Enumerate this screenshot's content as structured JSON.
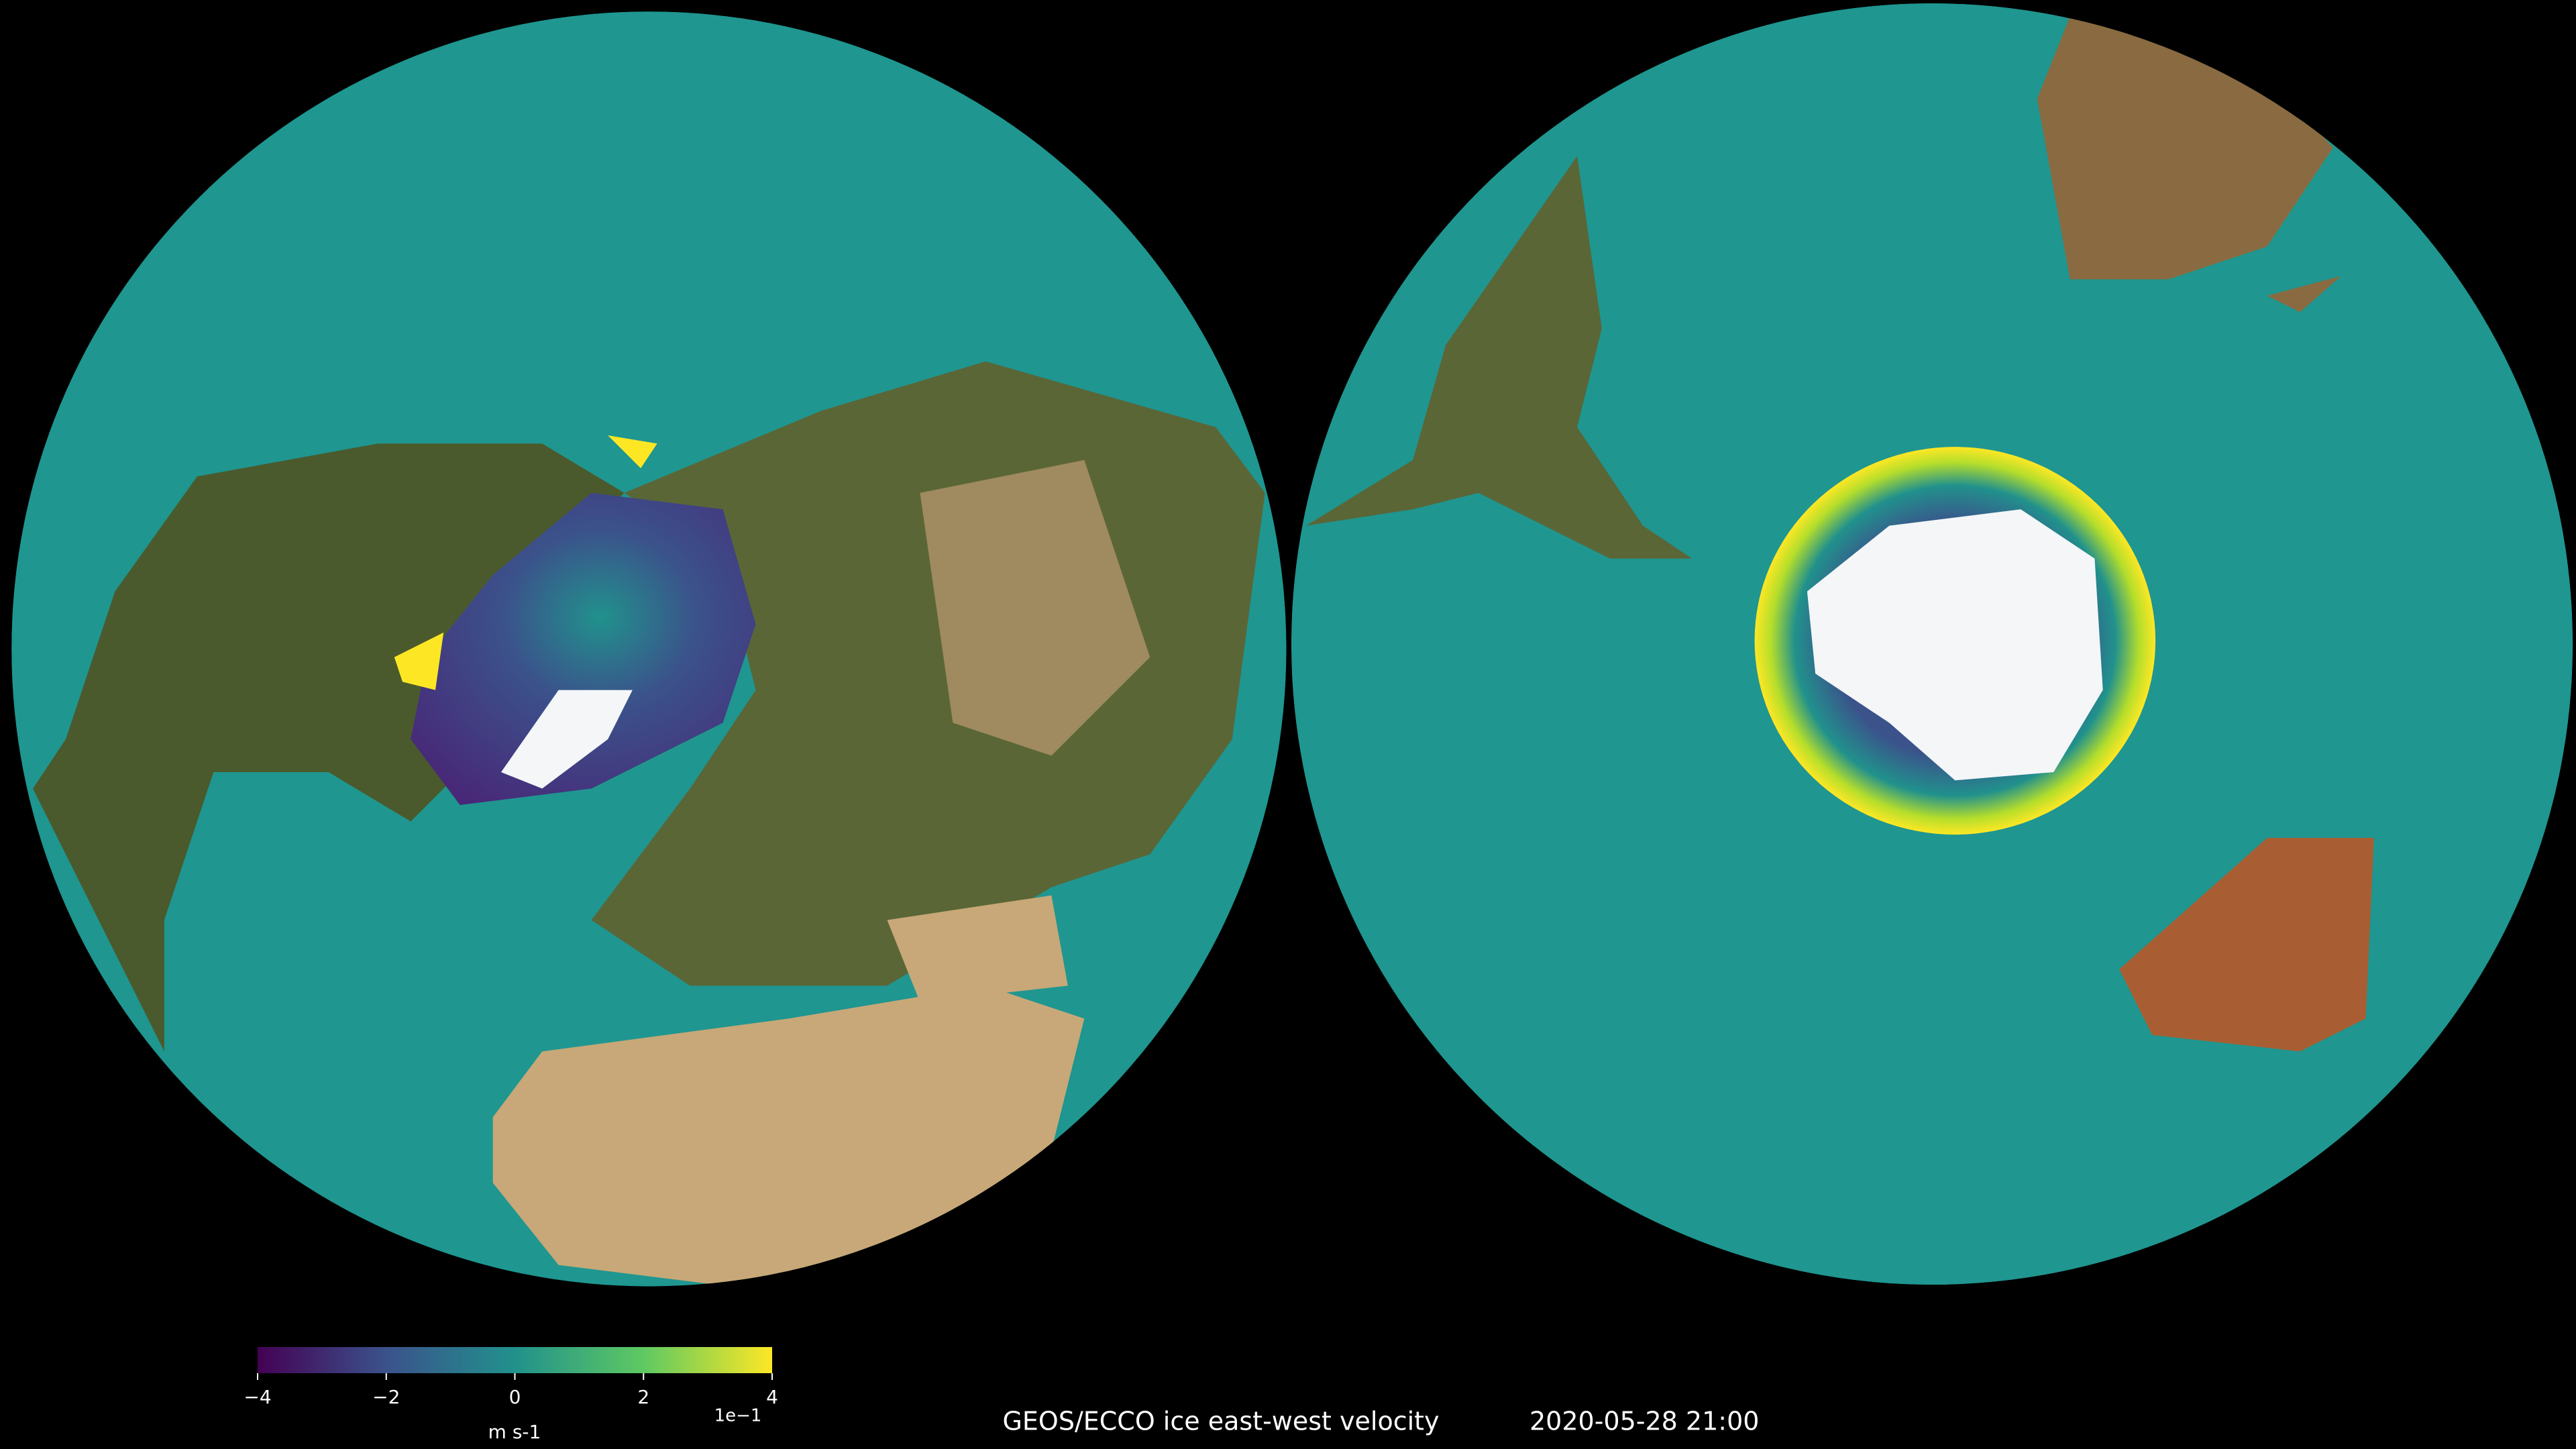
{
  "title": "GEOS/ECCO ice east-west velocity",
  "timestamp": "2020-05-28 21:00",
  "colorbar": {
    "lim": [
      -4,
      4
    ],
    "ticks": [
      {
        "value": -4,
        "label": "−4"
      },
      {
        "value": -2,
        "label": "−2"
      },
      0,
      2,
      4
    ],
    "scale_label": "1e−1",
    "units": "m s-1"
  }
}
